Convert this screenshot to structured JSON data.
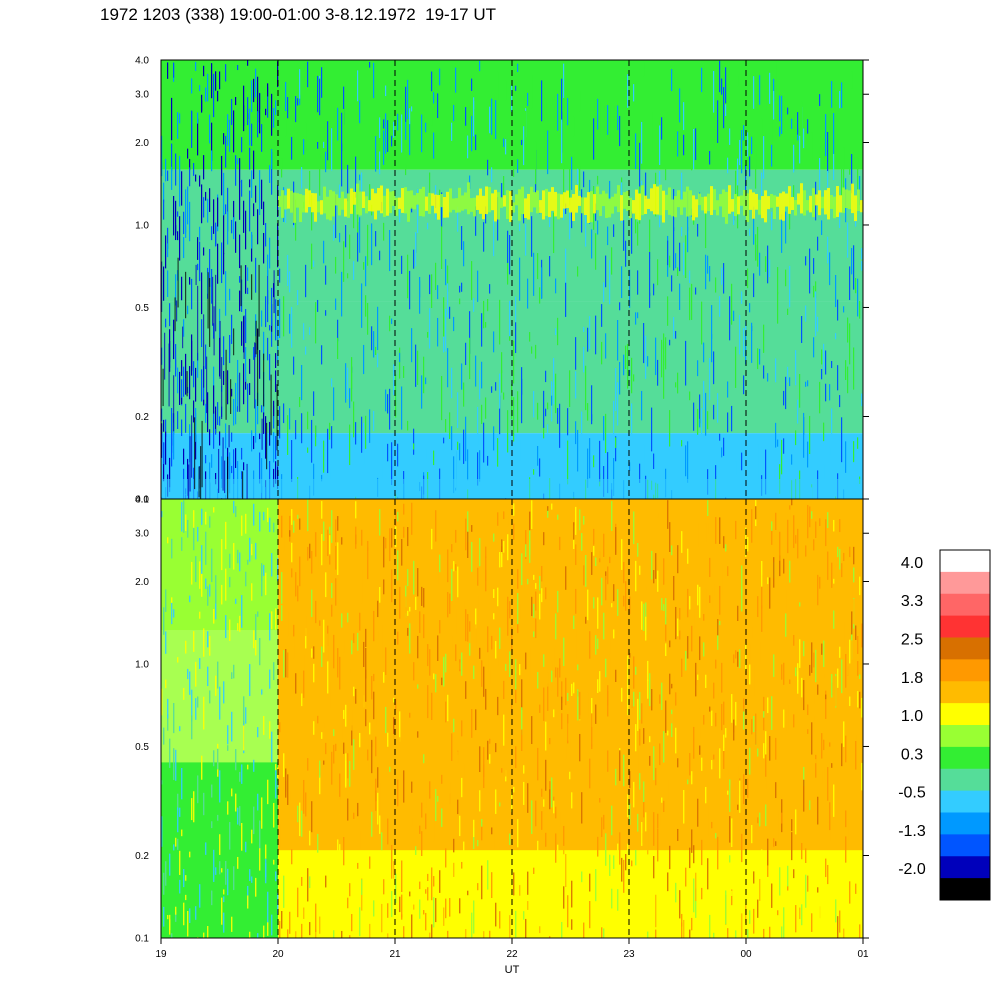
{
  "title": "1972 1203 (338) 19:00-01:00 3-8.12.1972  19-17 UT",
  "chart_data": [
    {
      "type": "heatmap",
      "panel": "top",
      "x_ticks": [
        "19",
        "20",
        "21",
        "22",
        "23",
        "00",
        "01"
      ],
      "y_ticks": [
        "4.0",
        "3.0",
        "2.0",
        "1.0",
        "0.5",
        "0.2",
        "0.1"
      ],
      "y_tick_values": [
        4.0,
        3.0,
        2.0,
        1.0,
        0.5,
        0.2,
        0.1
      ],
      "y_scale": "log",
      "ylim": [
        0.1,
        4.0
      ],
      "xlim": [
        "19",
        "01"
      ],
      "dashed_vertical_lines_at": [
        "20",
        "21",
        "22",
        "23",
        "00"
      ],
      "background_level": -0.5,
      "features": {
        "dark_band_hours": [
          "19",
          "20"
        ],
        "bright_band_center": 1.2,
        "bright_band_level": 1.0
      }
    },
    {
      "type": "heatmap",
      "panel": "bottom",
      "x_ticks": [
        "19",
        "20",
        "21",
        "22",
        "23",
        "00",
        "01"
      ],
      "y_ticks": [
        "4.0",
        "3.0",
        "2.0",
        "1.0",
        "0.5",
        "0.2",
        "0.1"
      ],
      "y_tick_values": [
        4.0,
        3.0,
        2.0,
        1.0,
        0.5,
        0.2,
        0.1
      ],
      "y_scale": "log",
      "ylim": [
        0.1,
        4.0
      ],
      "xlim": [
        "19",
        "01"
      ],
      "xlabel": "UT",
      "dashed_vertical_lines_at": [
        "20",
        "21",
        "22",
        "23",
        "00"
      ],
      "background_level": 1.8,
      "features": {
        "quiet_region_hours": [
          "19",
          "20"
        ],
        "quiet_level": 0.3
      }
    }
  ],
  "colorbar": {
    "labels": [
      "4.0",
      "3.3",
      "2.5",
      "1.8",
      "1.0",
      "0.3",
      "-0.5",
      "-1.3",
      "-2.0"
    ],
    "colors": [
      "#ffffff",
      "#ff9999",
      "#ff6666",
      "#ff3333",
      "#d87000",
      "#ff9900",
      "#ffbb00",
      "#ffff00",
      "#99ff33",
      "#33ee33",
      "#55dd99",
      "#33ccff",
      "#0099ff",
      "#0055ff",
      "#0000bb",
      "#000000"
    ]
  },
  "palette": {
    "black": "#000000",
    "dark_blue": "#0000bb",
    "blue": "#0055ff",
    "mid_blue": "#0099ff",
    "cyan": "#33ccff",
    "teal": "#55dd99",
    "green": "#33ee33",
    "lime": "#99ff33",
    "yellow": "#ffff00",
    "gold": "#ffbb00",
    "orange": "#ff9900",
    "dark_orange": "#d87000"
  }
}
